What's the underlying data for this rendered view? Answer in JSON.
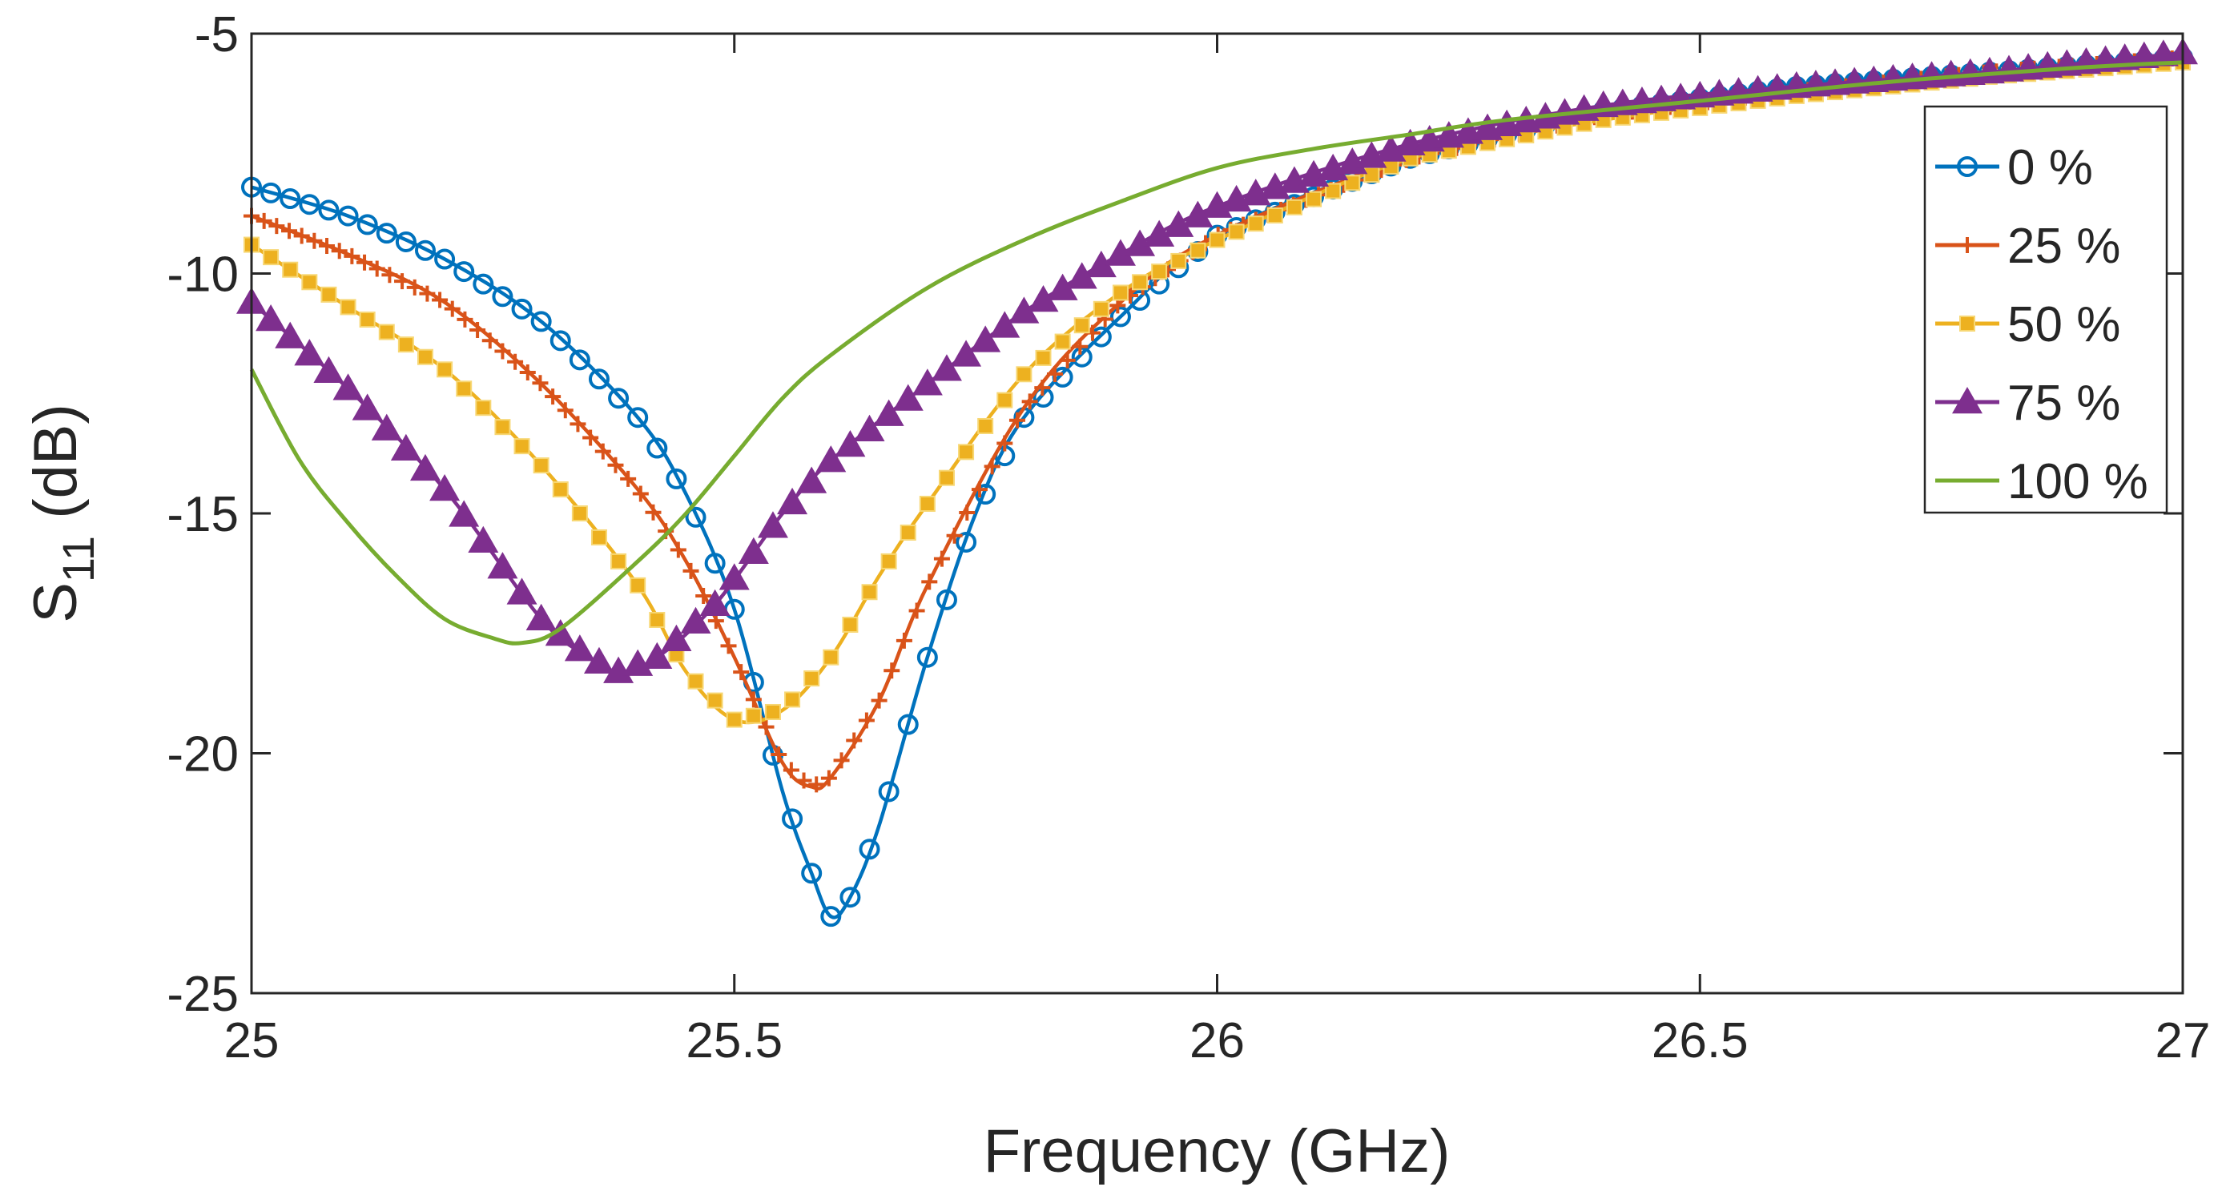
{
  "chart_data": {
    "type": "line",
    "title": "",
    "xlabel": "Frequency (GHz)",
    "ylabel": "S",
    "ylabel_sub": "11",
    "ylabel_unit": " (dB)",
    "xlim": [
      25,
      27
    ],
    "ylim": [
      -25,
      -5
    ],
    "xticks": [
      25,
      25.5,
      26,
      26.5,
      27
    ],
    "xtick_labels": [
      "25",
      "25.5",
      "26",
      "26.5",
      "27"
    ],
    "yticks": [
      -25,
      -20,
      -15,
      -10,
      -5
    ],
    "ytick_labels": [
      "-25",
      "-20",
      "-15",
      "-10",
      "-5"
    ],
    "legend_position": "top-right",
    "series": [
      {
        "name": "0 %",
        "color": "#0072BD",
        "marker": "circle",
        "x": [
          25.0,
          25.1,
          25.2,
          25.3,
          25.4,
          25.45,
          25.5,
          25.55,
          25.58,
          25.6,
          25.62,
          25.65,
          25.7,
          25.75,
          25.8,
          25.9,
          26.0,
          26.2,
          26.4,
          26.6,
          26.8,
          27.0
        ],
        "y": [
          -8.2,
          -8.8,
          -9.7,
          -11.0,
          -13.0,
          -14.6,
          -17.0,
          -20.8,
          -22.5,
          -23.4,
          -23.0,
          -21.5,
          -18.0,
          -15.0,
          -13.0,
          -10.9,
          -9.2,
          -7.6,
          -6.6,
          -6.1,
          -5.8,
          -5.5
        ]
      },
      {
        "name": "25 %",
        "color": "#D95319",
        "marker": "plus",
        "x": [
          25.0,
          25.1,
          25.2,
          25.3,
          25.4,
          25.45,
          25.5,
          25.55,
          25.58,
          25.6,
          25.65,
          25.7,
          25.8,
          25.9,
          26.0,
          26.2,
          26.4,
          26.6,
          26.8,
          27.0
        ],
        "y": [
          -8.8,
          -9.6,
          -10.6,
          -12.3,
          -14.5,
          -16.0,
          -18.0,
          -20.2,
          -20.7,
          -20.5,
          -18.9,
          -16.5,
          -12.8,
          -10.6,
          -9.2,
          -7.6,
          -6.7,
          -6.2,
          -5.8,
          -5.5
        ]
      },
      {
        "name": "50 %",
        "color": "#EDB120",
        "marker": "square",
        "x": [
          25.0,
          25.1,
          25.2,
          25.3,
          25.4,
          25.45,
          25.5,
          25.55,
          25.6,
          25.65,
          25.7,
          25.8,
          25.9,
          26.0,
          26.2,
          26.4,
          26.6,
          26.8,
          27.0
        ],
        "y": [
          -9.4,
          -10.7,
          -12.0,
          -14.0,
          -16.5,
          -18.3,
          -19.3,
          -19.1,
          -18.0,
          -16.3,
          -14.8,
          -12.1,
          -10.4,
          -9.3,
          -7.6,
          -6.8,
          -6.3,
          -5.9,
          -5.6
        ]
      },
      {
        "name": "75 %",
        "color": "#7E2F8E",
        "marker": "triangle",
        "x": [
          25.0,
          25.1,
          25.2,
          25.3,
          25.35,
          25.38,
          25.42,
          25.48,
          25.55,
          25.6,
          25.7,
          25.8,
          25.9,
          26.0,
          26.2,
          26.4,
          26.6,
          26.8,
          27.0
        ],
        "y": [
          -10.6,
          -12.4,
          -14.5,
          -17.2,
          -18.0,
          -18.3,
          -18.0,
          -16.9,
          -15.0,
          -13.9,
          -12.3,
          -10.8,
          -9.6,
          -8.6,
          -7.3,
          -6.5,
          -6.1,
          -5.8,
          -5.4
        ]
      },
      {
        "name": "100 %",
        "color": "#77AC30",
        "marker": "none",
        "x": [
          25.0,
          25.05,
          25.1,
          25.15,
          25.2,
          25.25,
          25.28,
          25.32,
          25.4,
          25.45,
          25.5,
          25.55,
          25.6,
          25.7,
          25.8,
          25.9,
          26.0,
          26.1,
          26.2,
          26.3,
          26.5,
          26.7,
          26.9,
          27.0
        ],
        "y": [
          -12.0,
          -13.9,
          -15.2,
          -16.3,
          -17.2,
          -17.6,
          -17.7,
          -17.4,
          -16.0,
          -15.0,
          -13.8,
          -12.6,
          -11.7,
          -10.3,
          -9.3,
          -8.5,
          -7.8,
          -7.4,
          -7.1,
          -6.8,
          -6.4,
          -6.0,
          -5.7,
          -5.6
        ]
      }
    ]
  }
}
